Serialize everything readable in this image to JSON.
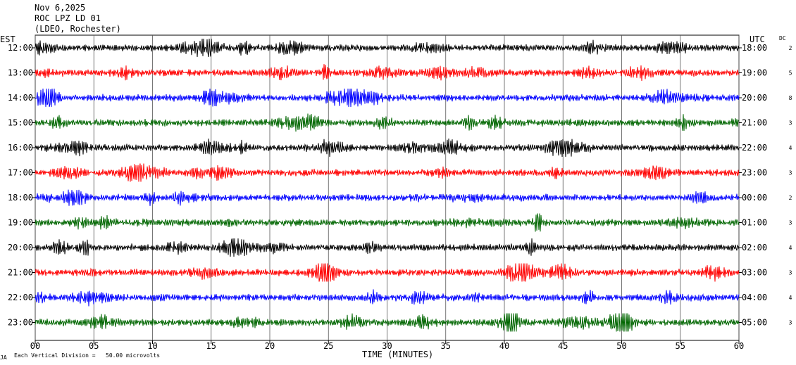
{
  "header": {
    "date": "Nov 6,2025",
    "station": "ROC LPZ LD 01",
    "network": "(LDEO, Rochester)"
  },
  "left_axis_title": "EST",
  "right_axis_title": "UTC",
  "dc_title": "DC",
  "footer": {
    "scale_note": "Each Vertical Division =   50.00 microvolts",
    "corner_mark": "JA"
  },
  "colors": {
    "black": "#000000",
    "red": "#ff0000",
    "blue": "#0000ff",
    "green": "#006600",
    "grid": "#000000"
  },
  "chart_data": {
    "type": "line",
    "xlabel": "TIME (MINUTES)",
    "xlim": [
      0,
      60
    ],
    "x_ticks": [
      "00",
      "05",
      "10",
      "15",
      "20",
      "25",
      "30",
      "35",
      "40",
      "45",
      "50",
      "55",
      "60"
    ],
    "grid": true,
    "series": [
      {
        "est": "12:00",
        "utc": "18:00",
        "dc": "2",
        "color": "black"
      },
      {
        "est": "13:00",
        "utc": "19:00",
        "dc": "5",
        "color": "red"
      },
      {
        "est": "14:00",
        "utc": "20:00",
        "dc": "8",
        "color": "blue"
      },
      {
        "est": "15:00",
        "utc": "21:00",
        "dc": "3",
        "color": "green"
      },
      {
        "est": "16:00",
        "utc": "22:00",
        "dc": "4",
        "color": "black"
      },
      {
        "est": "17:00",
        "utc": "23:00",
        "dc": "3",
        "color": "red"
      },
      {
        "est": "18:00",
        "utc": "00:00",
        "dc": "2",
        "color": "blue"
      },
      {
        "est": "19:00",
        "utc": "01:00",
        "dc": "3",
        "color": "green"
      },
      {
        "est": "20:00",
        "utc": "02:00",
        "dc": "4",
        "color": "black"
      },
      {
        "est": "21:00",
        "utc": "03:00",
        "dc": "3",
        "color": "red"
      },
      {
        "est": "22:00",
        "utc": "04:00",
        "dc": "4",
        "color": "blue"
      },
      {
        "est": "23:00",
        "utc": "05:00",
        "dc": "3",
        "color": "green"
      }
    ]
  }
}
